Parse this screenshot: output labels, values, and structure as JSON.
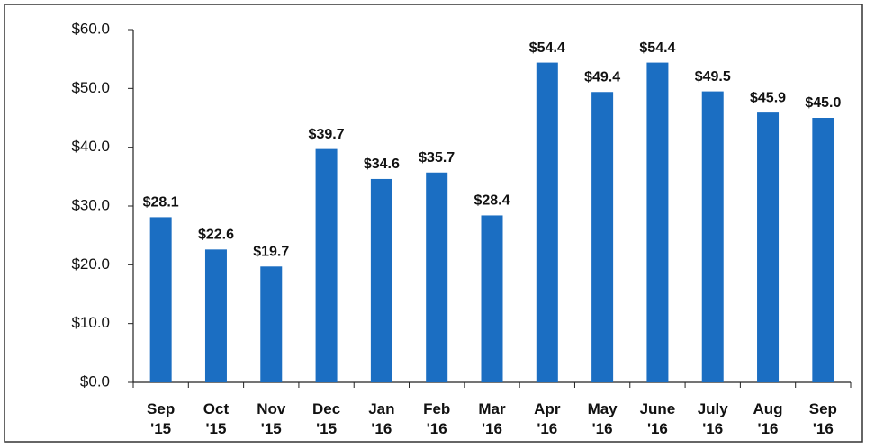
{
  "chart_data": {
    "type": "bar",
    "categories": [
      "Sep\n'15",
      "Oct\n'15",
      "Nov\n'15",
      "Dec\n'15",
      "Jan\n'16",
      "Feb\n'16",
      "Mar\n'16",
      "Apr\n'16",
      "May\n'16",
      "June\n'16",
      "July\n'16",
      "Aug\n'16",
      "Sep\n'16"
    ],
    "values": [
      28.1,
      22.6,
      19.7,
      39.7,
      34.6,
      35.7,
      28.4,
      54.4,
      49.4,
      54.4,
      49.5,
      45.9,
      45.0
    ],
    "value_labels": [
      "$28.1",
      "$22.6",
      "$19.7",
      "$39.7",
      "$34.6",
      "$35.7",
      "$28.4",
      "$54.4",
      "$49.4",
      "$54.4",
      "$49.5",
      "$45.9",
      "$45.0"
    ],
    "color": "#1b6ec2",
    "ylim": [
      0,
      60
    ],
    "yticks": [
      {
        "value": 0,
        "label": "$0.0"
      },
      {
        "value": 10,
        "label": "$10.0"
      },
      {
        "value": 20,
        "label": "$20.0"
      },
      {
        "value": 30,
        "label": "$30.0"
      },
      {
        "value": 40,
        "label": "$40.0"
      },
      {
        "value": 50,
        "label": "$50.0"
      },
      {
        "value": 60,
        "label": "$60.0"
      }
    ],
    "grid": false
  }
}
